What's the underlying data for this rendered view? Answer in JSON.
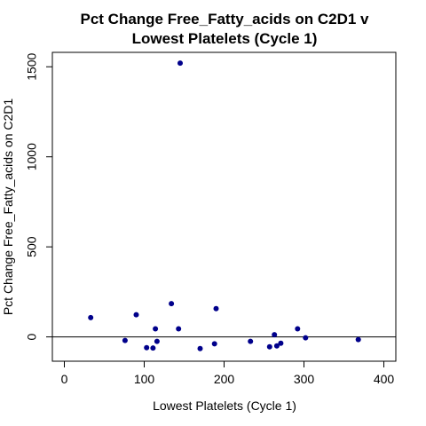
{
  "chart_data": {
    "type": "scatter",
    "title_line1": "Pct Change Free_Fatty_acids on C2D1 v",
    "title_line2": "Lowest Platelets (Cycle 1)",
    "xlabel": "Lowest Platelets (Cycle 1)",
    "ylabel": "Pct Change Free_Fatty_acids on C2D1",
    "xlim": [
      -15,
      415
    ],
    "ylim": [
      -135,
      1580
    ],
    "xticks": [
      0,
      100,
      200,
      300,
      400
    ],
    "yticks": [
      0,
      500,
      1000,
      1500
    ],
    "reference_line_y": 0,
    "point_color": "#00008B",
    "points": [
      {
        "x": 33,
        "y": 107
      },
      {
        "x": 76,
        "y": -20
      },
      {
        "x": 90,
        "y": 123
      },
      {
        "x": 103,
        "y": -60
      },
      {
        "x": 111,
        "y": -62
      },
      {
        "x": 114,
        "y": 45
      },
      {
        "x": 116,
        "y": -25
      },
      {
        "x": 134,
        "y": 185
      },
      {
        "x": 143,
        "y": 45
      },
      {
        "x": 145,
        "y": 1520
      },
      {
        "x": 170,
        "y": -65
      },
      {
        "x": 188,
        "y": -38
      },
      {
        "x": 190,
        "y": 157
      },
      {
        "x": 233,
        "y": -25
      },
      {
        "x": 257,
        "y": -55
      },
      {
        "x": 263,
        "y": 12
      },
      {
        "x": 266,
        "y": -50
      },
      {
        "x": 271,
        "y": -35
      },
      {
        "x": 292,
        "y": 45
      },
      {
        "x": 302,
        "y": -5
      },
      {
        "x": 368,
        "y": -15
      }
    ]
  }
}
